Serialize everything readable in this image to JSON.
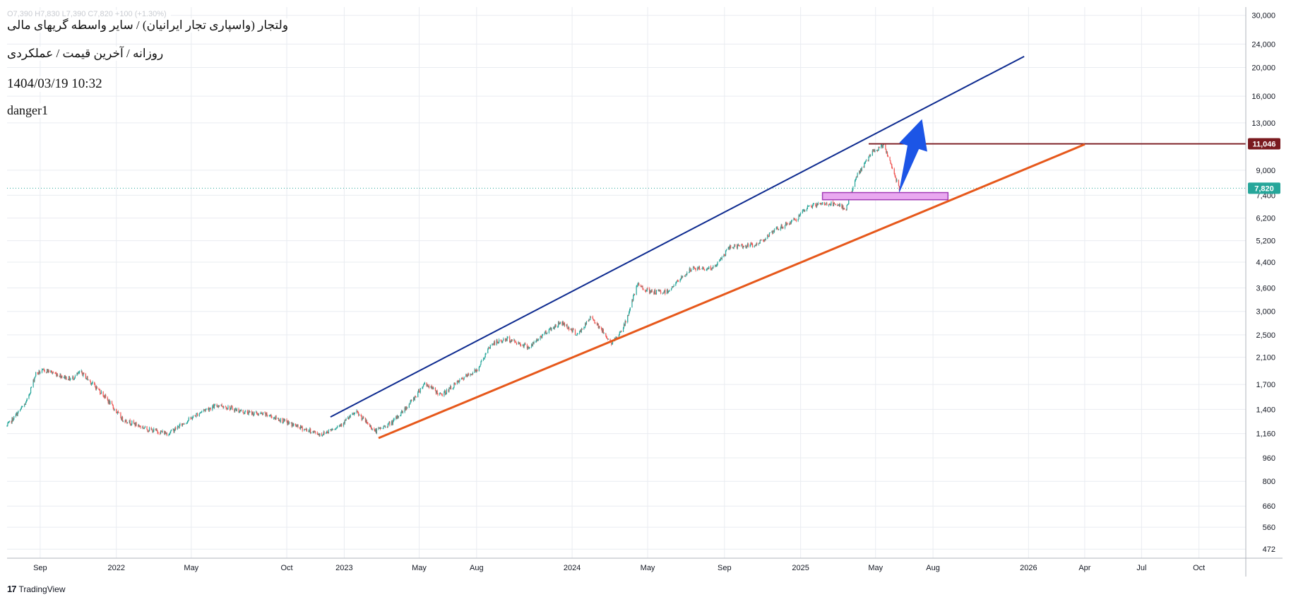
{
  "header": {
    "ohlc_faded": "O7,390  H7,830  L7,390  C7,820  +100 (+1.30%)",
    "title": "ولتجار (واسپاری تجار ایرانیان) / سایر واسطه گریهای مالی",
    "subtitle": "روزانه / آخرین قیمت / عملکردی",
    "datetime": "1404/03/19 10:32",
    "user": "danger1"
  },
  "brand": {
    "logo_text": "17",
    "name": "TradingView"
  },
  "colors": {
    "upper_channel": "#0d2a8f",
    "lower_channel": "#e6581b",
    "resistance": "#7a1a1f",
    "arrow": "#1c55e6",
    "zone_fill": "#e9a8f0",
    "zone_stroke": "#a23bb5",
    "up_candle": "#26a69a",
    "down_candle": "#ef5350",
    "last_price": "#26a69a",
    "grid": "#e9ecf1"
  },
  "chart_data": {
    "type": "candlestick",
    "y_scale": "log",
    "ylim": [
      440,
      32000
    ],
    "y_ticks": [
      472,
      560,
      660,
      800,
      960,
      1160,
      1400,
      1700,
      2100,
      2500,
      3000,
      3600,
      4400,
      5200,
      6200,
      7400,
      9000,
      13000,
      16000,
      20000,
      24000,
      30000
    ],
    "y_tick_labels": [
      "472",
      "560",
      "660",
      "800",
      "960",
      "1,160",
      "1,400",
      "1,700",
      "2,100",
      "2,500",
      "3,000",
      "3,600",
      "4,400",
      "5,200",
      "6,200",
      "7,400",
      "9,000",
      "13,000",
      "16,000",
      "20,000",
      "24,000",
      "30,000"
    ],
    "xlim": [
      "2021-07-10",
      "2026-12-15"
    ],
    "x_ticks": [
      {
        "date": "2021-09-01",
        "label": "Sep"
      },
      {
        "date": "2022-01-01",
        "label": "2022"
      },
      {
        "date": "2022-05-01",
        "label": "May"
      },
      {
        "date": "2022-10-01",
        "label": "Oct"
      },
      {
        "date": "2023-01-01",
        "label": "2023"
      },
      {
        "date": "2023-05-01",
        "label": "May"
      },
      {
        "date": "2023-08-01",
        "label": "Aug"
      },
      {
        "date": "2024-01-01",
        "label": "2024"
      },
      {
        "date": "2024-05-01",
        "label": "May"
      },
      {
        "date": "2024-09-01",
        "label": "Sep"
      },
      {
        "date": "2025-01-01",
        "label": "2025"
      },
      {
        "date": "2025-05-01",
        "label": "May"
      },
      {
        "date": "2025-08-01",
        "label": "Aug"
      },
      {
        "date": "2026-01-01",
        "label": "2026"
      },
      {
        "date": "2026-04-01",
        "label": "Apr"
      },
      {
        "date": "2026-07-01",
        "label": "Jul"
      },
      {
        "date": "2026-10-01",
        "label": "Oct"
      }
    ],
    "price_path": [
      [
        "2021-07-10",
        1230
      ],
      [
        "2021-08-10",
        1480
      ],
      [
        "2021-08-25",
        1850
      ],
      [
        "2021-09-10",
        1900
      ],
      [
        "2021-10-20",
        1770
      ],
      [
        "2021-11-05",
        1870
      ],
      [
        "2021-12-10",
        1580
      ],
      [
        "2022-01-10",
        1300
      ],
      [
        "2022-02-20",
        1200
      ],
      [
        "2022-03-25",
        1160
      ],
      [
        "2022-05-20",
        1390
      ],
      [
        "2022-06-15",
        1450
      ],
      [
        "2022-07-25",
        1370
      ],
      [
        "2022-09-01",
        1340
      ],
      [
        "2022-10-20",
        1220
      ],
      [
        "2022-11-25",
        1150
      ],
      [
        "2022-12-25",
        1240
      ],
      [
        "2023-01-20",
        1370
      ],
      [
        "2023-02-20",
        1180
      ],
      [
        "2023-03-20",
        1270
      ],
      [
        "2023-04-20",
        1500
      ],
      [
        "2023-05-10",
        1720
      ],
      [
        "2023-06-05",
        1560
      ],
      [
        "2023-07-10",
        1780
      ],
      [
        "2023-08-01",
        1900
      ],
      [
        "2023-08-25",
        2330
      ],
      [
        "2023-09-20",
        2420
      ],
      [
        "2023-10-25",
        2270
      ],
      [
        "2023-11-20",
        2560
      ],
      [
        "2023-12-15",
        2760
      ],
      [
        "2024-01-10",
        2500
      ],
      [
        "2024-02-01",
        2880
      ],
      [
        "2024-03-05",
        2330
      ],
      [
        "2024-03-25",
        2700
      ],
      [
        "2024-04-15",
        3700
      ],
      [
        "2024-05-05",
        3480
      ],
      [
        "2024-06-01",
        3500
      ],
      [
        "2024-07-10",
        4180
      ],
      [
        "2024-08-15",
        4200
      ],
      [
        "2024-09-10",
        4960
      ],
      [
        "2024-10-20",
        5020
      ],
      [
        "2024-11-25",
        5700
      ],
      [
        "2024-12-25",
        6150
      ],
      [
        "2025-01-15",
        6820
      ],
      [
        "2025-02-15",
        6950
      ],
      [
        "2025-03-15",
        6700
      ],
      [
        "2025-04-01",
        8600
      ],
      [
        "2025-04-25",
        10300
      ],
      [
        "2025-05-15",
        10900
      ],
      [
        "2025-06-08",
        7820
      ]
    ],
    "last_price": 7820,
    "last_price_label": "7,820",
    "resistance_level": 11046,
    "resistance_label": "11,046",
    "upper_channel": {
      "start": [
        "2022-12-10",
        1320
      ],
      "end": [
        "2025-12-25",
        21800
      ]
    },
    "lower_channel": {
      "start": [
        "2023-02-25",
        1120
      ],
      "end": [
        "2026-04-01",
        11000
      ]
    },
    "resistance_segment": {
      "start": [
        "2025-04-20",
        11046
      ],
      "end": [
        "2026-12-15",
        11046
      ]
    },
    "zone": {
      "start": "2025-02-05",
      "end": "2025-08-25",
      "low": 7150,
      "high": 7560
    },
    "arrow": {
      "from": [
        "2025-06-08",
        7600
      ],
      "to": [
        "2025-07-14",
        13300
      ]
    }
  }
}
